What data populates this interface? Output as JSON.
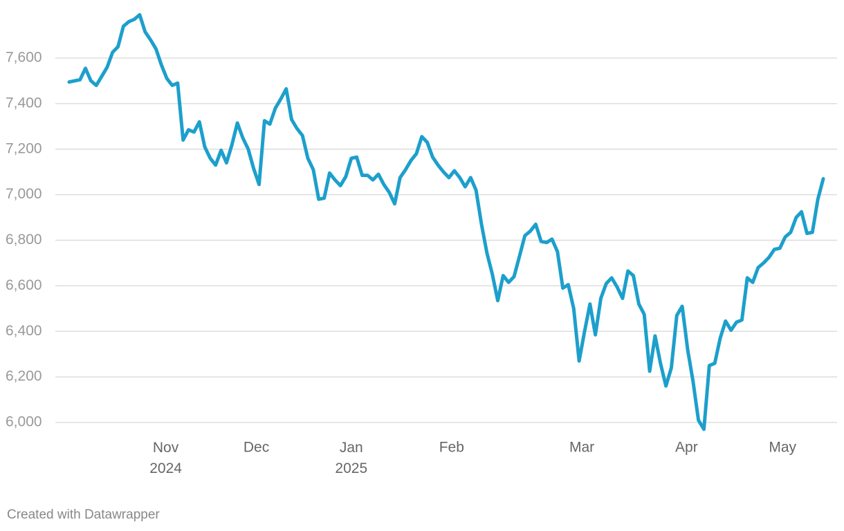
{
  "chart_data": {
    "type": "line",
    "credit": "Created with Datawrapper",
    "color": "#1d9fcc",
    "grid": true,
    "values": [
      7495,
      7500,
      7505,
      7555,
      7500,
      7480,
      7520,
      7560,
      7625,
      7650,
      7740,
      7760,
      7770,
      7790,
      7715,
      7680,
      7640,
      7570,
      7510,
      7480,
      7490,
      7240,
      7285,
      7275,
      7320,
      7210,
      7160,
      7130,
      7195,
      7140,
      7220,
      7315,
      7250,
      7200,
      7115,
      7045,
      7325,
      7310,
      7380,
      7420,
      7465,
      7330,
      7290,
      7260,
      7160,
      7110,
      6980,
      6985,
      7095,
      7065,
      7040,
      7080,
      7160,
      7165,
      7085,
      7085,
      7065,
      7090,
      7045,
      7010,
      6960,
      7075,
      7110,
      7150,
      7180,
      7255,
      7230,
      7165,
      7130,
      7100,
      7075,
      7105,
      7075,
      7035,
      7075,
      7020,
      6870,
      6745,
      6650,
      6535,
      6645,
      6615,
      6640,
      6730,
      6820,
      6840,
      6870,
      6795,
      6790,
      6805,
      6750,
      6590,
      6605,
      6500,
      6270,
      6400,
      6520,
      6385,
      6545,
      6610,
      6635,
      6595,
      6545,
      6665,
      6645,
      6520,
      6475,
      6225,
      6380,
      6260,
      6160,
      6240,
      6470,
      6510,
      6320,
      6180,
      6010,
      5970,
      6250,
      6260,
      6370,
      6445,
      6405,
      6440,
      6450,
      6635,
      6615,
      6680,
      6700,
      6725,
      6760,
      6765,
      6815,
      6835,
      6900,
      6925,
      6830,
      6835,
      6980,
      7070
    ],
    "xlim": [
      0,
      139
    ],
    "xticks": [
      {
        "value": 17.8,
        "label": "Nov 2024"
      },
      {
        "value": 34.5,
        "label": "Dec"
      },
      {
        "value": 52,
        "label": "Jan 2025"
      },
      {
        "value": 70.5,
        "label": "Feb"
      },
      {
        "value": 94.5,
        "label": "Mar"
      },
      {
        "value": 113.8,
        "label": "Apr"
      },
      {
        "value": 131.5,
        "label": "May"
      }
    ],
    "ylim": [
      5940,
      7800
    ],
    "yticks": [
      {
        "value": 6000,
        "label": "6,000"
      },
      {
        "value": 6200,
        "label": "6,200"
      },
      {
        "value": 6400,
        "label": "6,400"
      },
      {
        "value": 6600,
        "label": "6,600"
      },
      {
        "value": 6800,
        "label": "6,800"
      },
      {
        "value": 7000,
        "label": "7,000"
      },
      {
        "value": 7200,
        "label": "7,200"
      },
      {
        "value": 7400,
        "label": "7,400"
      },
      {
        "value": 7600,
        "label": "7,600"
      }
    ]
  }
}
